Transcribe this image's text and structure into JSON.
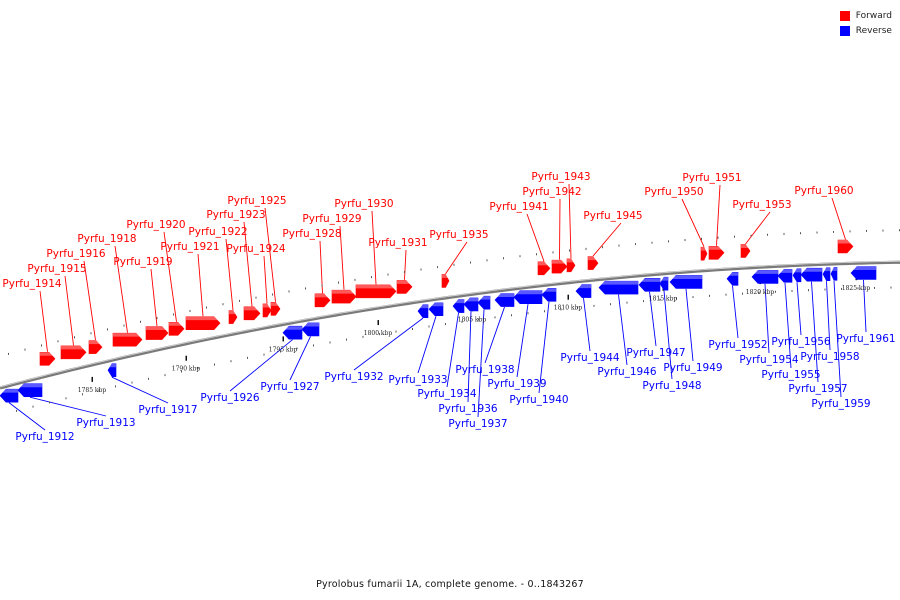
{
  "caption": "Pyrolobus fumarii 1A, complete genome. - 0..1843267",
  "legend": {
    "forward_label": "Forward",
    "reverse_label": "Reverse",
    "forward_color": "#ff0000",
    "reverse_color": "#0000ff"
  },
  "genome_map": {
    "backbone_color": "#7a7a7a",
    "tick_labels": [
      "1785 kbp",
      "1790 kbp",
      "1795 kbp",
      "1800 kbp",
      "1805 kbp",
      "1810 kbp",
      "1815 kbp",
      "1820 kbp",
      "1825 kbp"
    ],
    "forward_genes": [
      "Pyrfu_1914",
      "Pyrfu_1915",
      "Pyrfu_1916",
      "Pyrfu_1918",
      "Pyrfu_1919",
      "Pyrfu_1920",
      "Pyrfu_1921",
      "Pyrfu_1922",
      "Pyrfu_1923",
      "Pyrfu_1924",
      "Pyrfu_1925",
      "Pyrfu_1928",
      "Pyrfu_1929",
      "Pyrfu_1930",
      "Pyrfu_1931",
      "Pyrfu_1935",
      "Pyrfu_1941",
      "Pyrfu_1942",
      "Pyrfu_1943",
      "Pyrfu_1945",
      "Pyrfu_1950",
      "Pyrfu_1951",
      "Pyrfu_1953",
      "Pyrfu_1960"
    ],
    "reverse_genes": [
      "Pyrfu_1912",
      "Pyrfu_1913",
      "Pyrfu_1917",
      "Pyrfu_1926",
      "Pyrfu_1927",
      "Pyrfu_1932",
      "Pyrfu_1933",
      "Pyrfu_1934",
      "Pyrfu_1936",
      "Pyrfu_1937",
      "Pyrfu_1938",
      "Pyrfu_1939",
      "Pyrfu_1940",
      "Pyrfu_1944",
      "Pyrfu_1946",
      "Pyrfu_1947",
      "Pyrfu_1948",
      "Pyrfu_1949",
      "Pyrfu_1952",
      "Pyrfu_1954",
      "Pyrfu_1955",
      "Pyrfu_1956",
      "Pyrfu_1957",
      "Pyrfu_1958",
      "Pyrfu_1959",
      "Pyrfu_1961"
    ]
  }
}
